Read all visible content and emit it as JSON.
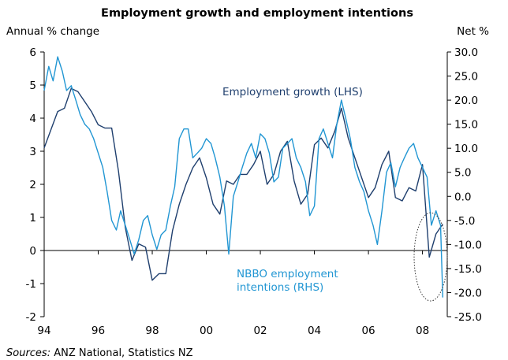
{
  "chart_data": {
    "type": "line",
    "title": "Employment growth and employment intentions",
    "ylabel_left": "Annual % change",
    "ylabel_right": "Net %",
    "xlim": [
      1994,
      2008.917
    ],
    "ylim_left": [
      -2,
      6
    ],
    "ylim_right": [
      -25,
      30
    ],
    "x_ticks": [
      1994,
      1996,
      1998,
      2000,
      2002,
      2004,
      2006,
      2008
    ],
    "x_tick_labels": [
      "94",
      "96",
      "98",
      "00",
      "02",
      "04",
      "06",
      "08"
    ],
    "y_ticks_left": [
      "-2",
      "-1",
      "0",
      "1",
      "2",
      "3",
      "4",
      "5",
      "6"
    ],
    "y_ticks_right": [
      "-25.0",
      "-20.0",
      "-15.0",
      "-10.0",
      "-5.0",
      "0.0",
      "5.0",
      "10.0",
      "15.0",
      "20.0",
      "25.0",
      "30.0"
    ],
    "grid": false,
    "legend": "none",
    "series": [
      {
        "name": "Employment growth (LHS)",
        "axis": "left",
        "color": "#1f3f6e",
        "x": [
          1994.0,
          1994.5,
          1994.75,
          1995.0,
          1995.25,
          1995.5,
          1995.75,
          1996.0,
          1996.25,
          1996.5,
          1996.75,
          1997.0,
          1997.25,
          1997.5,
          1997.75,
          1998.0,
          1998.25,
          1998.5,
          1998.75,
          1999.0,
          1999.25,
          1999.5,
          1999.75,
          2000.0,
          2000.25,
          2000.5,
          2000.75,
          2001.0,
          2001.25,
          2001.5,
          2001.75,
          2002.0,
          2002.25,
          2002.5,
          2002.75,
          2003.0,
          2003.25,
          2003.5,
          2003.75,
          2004.0,
          2004.25,
          2004.5,
          2004.75,
          2005.0,
          2005.25,
          2005.5,
          2005.75,
          2006.0,
          2006.25,
          2006.5,
          2006.75,
          2007.0,
          2007.25,
          2007.5,
          2007.75,
          2008.0,
          2008.25,
          2008.5,
          2008.75
        ],
        "values": [
          3.1,
          4.2,
          4.3,
          4.9,
          4.8,
          4.5,
          4.2,
          3.8,
          3.7,
          3.7,
          2.4,
          0.7,
          -0.3,
          0.2,
          0.1,
          -0.9,
          -0.7,
          -0.7,
          0.6,
          1.4,
          2.0,
          2.5,
          2.8,
          2.2,
          1.4,
          1.1,
          2.1,
          2.0,
          2.3,
          2.3,
          2.6,
          3.0,
          2.0,
          2.3,
          3.0,
          3.3,
          2.1,
          1.4,
          1.7,
          3.2,
          3.4,
          3.1,
          3.6,
          4.3,
          3.4,
          2.8,
          2.2,
          1.6,
          1.9,
          2.6,
          3.0,
          1.6,
          1.5,
          1.9,
          1.8,
          2.6,
          -0.2,
          0.5,
          0.8
        ]
      },
      {
        "name": "NBBO employment intentions (RHS)",
        "axis": "right",
        "color": "#2196d3",
        "x": [
          1994.0,
          1994.17,
          1994.33,
          1994.5,
          1994.67,
          1994.83,
          1995.0,
          1995.17,
          1995.33,
          1995.5,
          1995.67,
          1995.83,
          1996.0,
          1996.17,
          1996.33,
          1996.5,
          1996.67,
          1996.83,
          1997.0,
          1997.17,
          1997.33,
          1997.5,
          1997.67,
          1997.83,
          1998.0,
          1998.17,
          1998.33,
          1998.5,
          1998.67,
          1998.83,
          1999.0,
          1999.17,
          1999.33,
          1999.5,
          1999.67,
          1999.83,
          2000.0,
          2000.17,
          2000.33,
          2000.5,
          2000.67,
          2000.83,
          2001.0,
          2001.17,
          2001.33,
          2001.5,
          2001.67,
          2001.83,
          2002.0,
          2002.17,
          2002.33,
          2002.5,
          2002.67,
          2002.83,
          2003.0,
          2003.17,
          2003.33,
          2003.5,
          2003.67,
          2003.83,
          2004.0,
          2004.17,
          2004.33,
          2004.5,
          2004.67,
          2004.83,
          2005.0,
          2005.17,
          2005.33,
          2005.5,
          2005.67,
          2005.83,
          2006.0,
          2006.17,
          2006.33,
          2006.5,
          2006.67,
          2006.83,
          2007.0,
          2007.17,
          2007.33,
          2007.5,
          2007.67,
          2007.83,
          2008.0,
          2008.17,
          2008.33,
          2008.5,
          2008.67,
          2008.75
        ],
        "values": [
          22.0,
          27.0,
          24.0,
          29.0,
          26.0,
          22.0,
          23.0,
          20.0,
          17.0,
          15.0,
          14.0,
          12.0,
          9.0,
          6.0,
          1.0,
          -5.0,
          -7.0,
          -3.0,
          -6.0,
          -9.0,
          -12.0,
          -9.0,
          -5.0,
          -4.0,
          -8.0,
          -11.0,
          -8.0,
          -7.0,
          -2.0,
          2.0,
          12.0,
          14.0,
          14.0,
          8.0,
          9.0,
          10.0,
          12.0,
          11.0,
          8.0,
          4.0,
          -2.0,
          -12.0,
          0.0,
          3.0,
          6.0,
          9.0,
          11.0,
          8.0,
          13.0,
          12.0,
          9.0,
          3.0,
          4.0,
          10.0,
          11.0,
          12.0,
          8.0,
          6.0,
          3.0,
          -4.0,
          -2.0,
          12.0,
          14.0,
          11.0,
          8.0,
          15.0,
          20.0,
          16.0,
          12.0,
          6.0,
          3.0,
          1.0,
          -3.0,
          -6.0,
          -10.0,
          -3.0,
          5.0,
          7.0,
          2.0,
          6.0,
          8.0,
          10.0,
          11.0,
          8.0,
          6.0,
          4.0,
          -6.0,
          -3.0,
          -6.0,
          -21.0
        ]
      }
    ],
    "annotations": [
      {
        "text_lines": [
          "Employment growth (LHS)"
        ],
        "color": "#1f3f6e"
      },
      {
        "text_lines": [
          "NBBO employment",
          "intentions (RHS)"
        ],
        "color": "#2196d3"
      }
    ],
    "highlight": {
      "shape": "dotted-ellipse",
      "x_center": 2008.62,
      "x_range": [
        2008.2,
        2009.0
      ]
    },
    "source": {
      "prefix": "Sources:",
      "text": " ANZ National, Statistics NZ"
    }
  }
}
